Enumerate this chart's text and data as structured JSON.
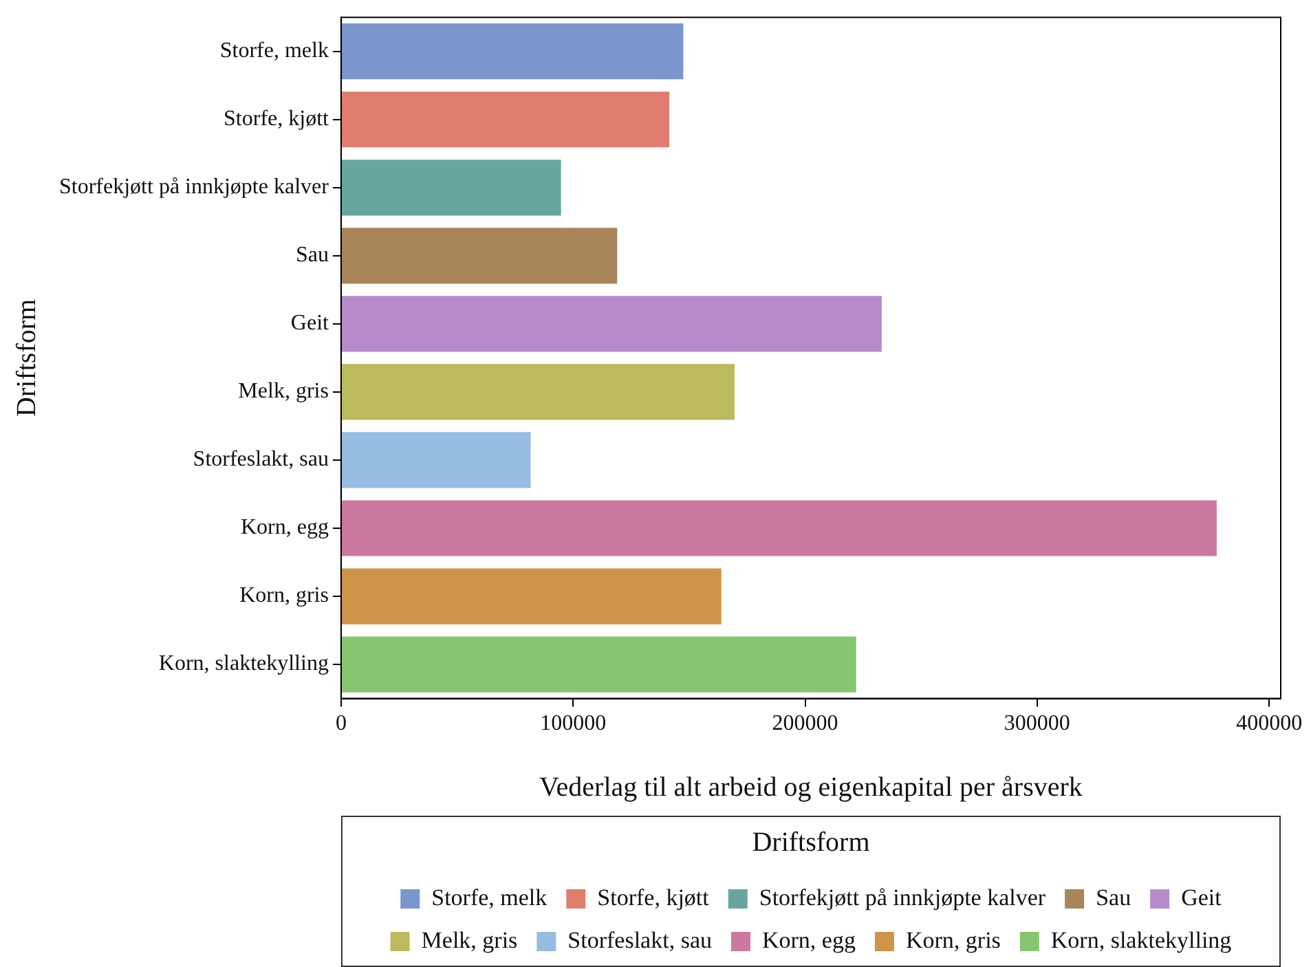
{
  "chart_data": {
    "type": "bar",
    "orientation": "horizontal",
    "xlabel": "Vederlag til alt arbeid og eigenkapital per årsverk",
    "ylabel": "Driftsform",
    "legend_title": "Driftsform",
    "legend": "bottom",
    "grid": false,
    "categories": [
      "Storfe, melk",
      "Storfe, kjøtt",
      "Storfekjøtt på innkjøpte kalver",
      "Sau",
      "Geit",
      "Melk, gris",
      "Storfeslakt, sau",
      "Korn, egg",
      "Korn, gris",
      "Korn, slaktekylling"
    ],
    "series": [
      {
        "name": "Storfe, melk",
        "color": "#7b96cc",
        "values": [
          147500,
          null,
          null,
          null,
          null,
          null,
          null,
          null,
          null,
          null
        ]
      },
      {
        "name": "Storfe, kjøtt",
        "color": "#df7e6e",
        "values": [
          null,
          141500,
          null,
          null,
          null,
          null,
          null,
          null,
          null,
          null
        ]
      },
      {
        "name": "Storfekjøtt på innkjøpte kalver",
        "color": "#67a69f",
        "values": [
          null,
          null,
          94800,
          null,
          null,
          null,
          null,
          null,
          null,
          null
        ]
      },
      {
        "name": "Sau",
        "color": "#a8855b",
        "values": [
          null,
          null,
          null,
          119000,
          null,
          null,
          null,
          null,
          null,
          null
        ]
      },
      {
        "name": "Geit",
        "color": "#b78bcb",
        "values": [
          null,
          null,
          null,
          null,
          233000,
          null,
          null,
          null,
          null,
          null
        ]
      },
      {
        "name": "Melk, gris",
        "color": "#bbbb5b",
        "values": [
          null,
          null,
          null,
          null,
          null,
          169600,
          null,
          null,
          null,
          null
        ]
      },
      {
        "name": "Storfeslakt, sau",
        "color": "#96bce2",
        "values": [
          null,
          null,
          null,
          null,
          null,
          null,
          81700,
          null,
          null,
          null
        ]
      },
      {
        "name": "Korn, egg",
        "color": "#cc799f",
        "values": [
          null,
          null,
          null,
          null,
          null,
          null,
          null,
          377400,
          null,
          null
        ]
      },
      {
        "name": "Korn, gris",
        "color": "#ce9549",
        "values": [
          null,
          null,
          null,
          null,
          null,
          null,
          null,
          null,
          163900,
          null
        ]
      },
      {
        "name": "Korn, slaktekylling",
        "color": "#87c670",
        "values": [
          null,
          null,
          null,
          null,
          null,
          null,
          null,
          null,
          null,
          222000
        ]
      }
    ],
    "xlim": [
      0,
      405000
    ],
    "xticks": [
      0,
      100000,
      200000,
      300000,
      400000
    ]
  }
}
